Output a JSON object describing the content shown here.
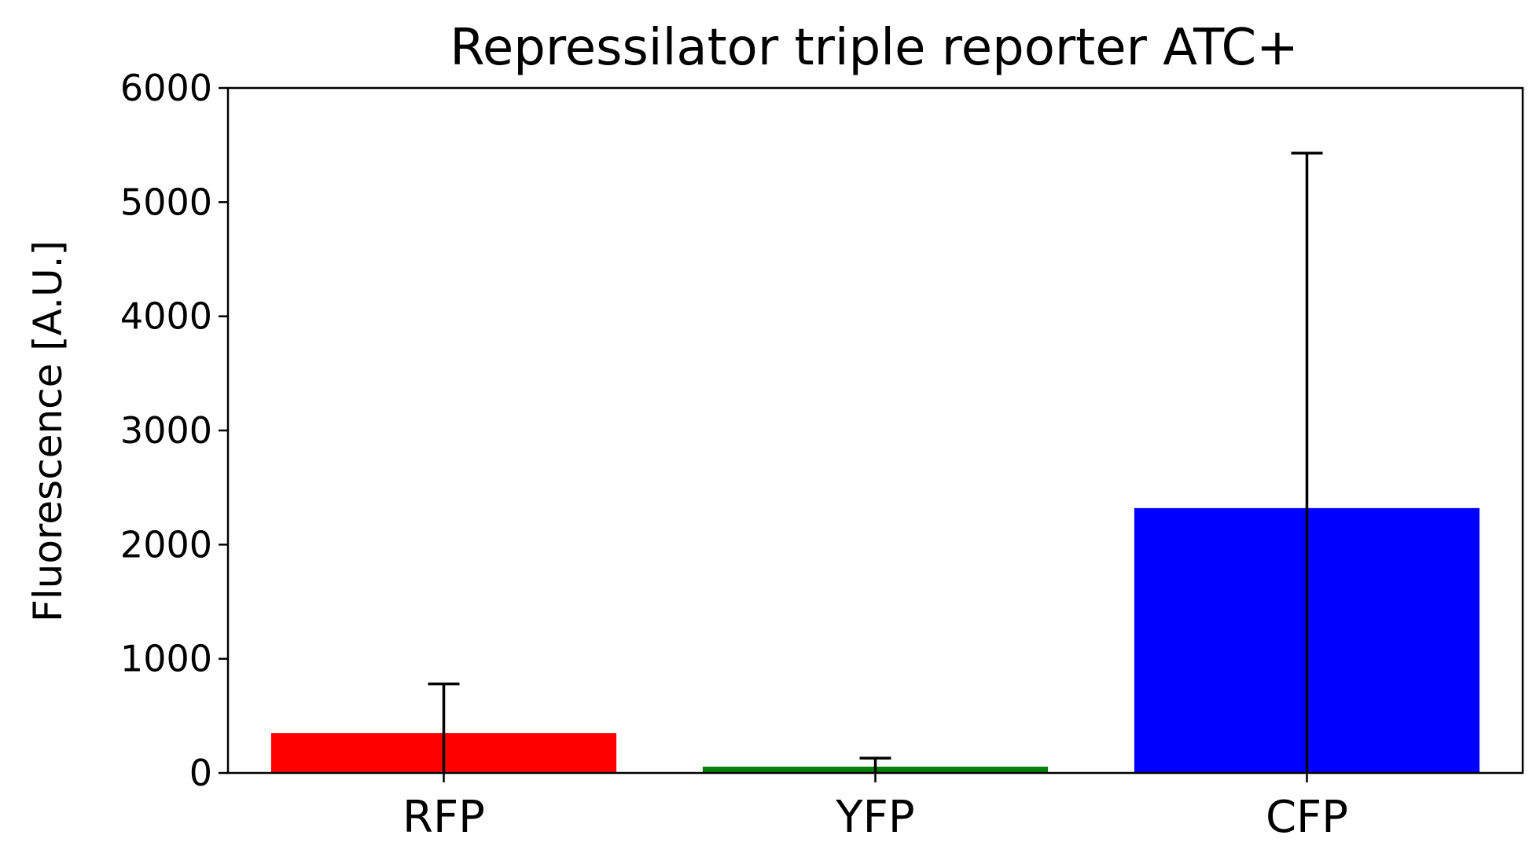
{
  "chart_data": {
    "type": "bar",
    "title": "Repressilator triple reporter ATC+",
    "xlabel": "",
    "ylabel": "Fluorescence [A.U.]",
    "ylim": [
      0,
      6000
    ],
    "yticks": [
      0,
      1000,
      2000,
      3000,
      4000,
      5000,
      6000
    ],
    "ytick_labels": [
      "0",
      "1000",
      "2000",
      "3000",
      "4000",
      "5000",
      "6000"
    ],
    "categories": [
      "RFP",
      "YFP",
      "CFP"
    ],
    "values": [
      350,
      55,
      2320
    ],
    "error": [
      430,
      75,
      3110
    ],
    "colors": [
      "#ff0000",
      "#008000",
      "#0000ff"
    ],
    "error_color": "#000000",
    "grid": false,
    "legend": "none"
  }
}
